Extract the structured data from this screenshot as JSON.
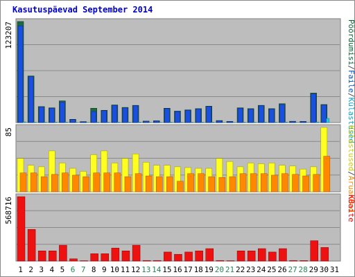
{
  "title": "Kasutuspäevad September 2014",
  "chart_data": [
    {
      "type": "bar",
      "panel": "top",
      "ymax_label": "123207",
      "ylim": [
        0,
        123207
      ],
      "y_axis_title_parts": [
        {
          "text": "Pöördumisi",
          "color": "#006633"
        },
        {
          "text": "/",
          "color": "#444444"
        },
        {
          "text": "Faile",
          "color": "#0055cc"
        },
        {
          "text": "/",
          "color": "#444444"
        },
        {
          "text": "Külastused",
          "color": "#00aacc"
        }
      ],
      "colors": {
        "hits": "#1d6b3a",
        "files": "#1a4fe0",
        "visits": "#22ccdd"
      },
      "categories": [
        "1",
        "2",
        "3",
        "4",
        "5",
        "6",
        "7",
        "8",
        "9",
        "10",
        "11",
        "12",
        "13",
        "14",
        "15",
        "16",
        "17",
        "18",
        "19",
        "20",
        "21",
        "22",
        "23",
        "24",
        "25",
        "26",
        "27",
        "28",
        "29",
        "30",
        "31"
      ],
      "series": [
        {
          "name": "Pöördumisi",
          "values": [
            123207,
            56800,
            19500,
            18000,
            26500,
            4000,
            1200,
            17500,
            15000,
            21500,
            18500,
            21000,
            1800,
            2200,
            17500,
            14000,
            15500,
            17000,
            20000,
            2500,
            1500,
            18000,
            17000,
            21000,
            17000,
            23000,
            1600,
            1500,
            36000,
            22000,
            0
          ]
        },
        {
          "name": "Faile",
          "values": [
            118000,
            56000,
            19000,
            17500,
            25000,
            3600,
            1000,
            13500,
            14500,
            21000,
            18000,
            20500,
            1600,
            2000,
            17000,
            13500,
            15000,
            16500,
            19500,
            2200,
            1300,
            17500,
            16500,
            20500,
            16500,
            22000,
            1400,
            1300,
            35000,
            21500,
            0
          ]
        },
        {
          "name": "Külastused",
          "values": [
            900,
            500,
            400,
            400,
            500,
            100,
            50,
            400,
            400,
            500,
            400,
            500,
            50,
            60,
            400,
            300,
            350,
            400,
            450,
            60,
            40,
            400,
            380,
            450,
            380,
            500,
            40,
            40,
            700,
            5000,
            0
          ]
        }
      ]
    },
    {
      "type": "bar",
      "panel": "middle",
      "ymax_label": "85",
      "ylim": [
        0,
        85
      ],
      "y_axis_title_parts": [
        {
          "text": "Külastused",
          "color": "#cccc00"
        },
        {
          "text": "/",
          "color": "#444444"
        },
        {
          "text": "Aruanded",
          "color": "#ff8800"
        }
      ],
      "colors": {
        "visits": "#ffff22",
        "reports": "#ff8800"
      },
      "categories": [
        "1",
        "2",
        "3",
        "4",
        "5",
        "6",
        "7",
        "8",
        "9",
        "10",
        "11",
        "12",
        "13",
        "14",
        "15",
        "16",
        "17",
        "18",
        "19",
        "20",
        "21",
        "22",
        "23",
        "24",
        "25",
        "26",
        "27",
        "28",
        "29",
        "30",
        "31"
      ],
      "series": [
        {
          "name": "Külastused",
          "values": [
            44,
            35,
            33,
            54,
            38,
            31,
            27,
            49,
            54,
            38,
            44,
            50,
            39,
            35,
            35,
            33,
            32,
            31,
            31,
            44,
            40,
            33,
            38,
            37,
            38,
            35,
            34,
            30,
            33,
            85,
            0
          ]
        },
        {
          "name": "Aruanded",
          "values": [
            25,
            25,
            20,
            23,
            25,
            22,
            20,
            25,
            25,
            25,
            20,
            24,
            21,
            20,
            20,
            14,
            24,
            24,
            20,
            19,
            20,
            24,
            24,
            24,
            22,
            24,
            23,
            21,
            23,
            47,
            0
          ]
        }
      ]
    },
    {
      "type": "bar",
      "panel": "bottom",
      "ymax_label": "568716",
      "ylim": [
        0,
        568716
      ],
      "y_axis_title_parts": [
        {
          "text": "KBaite",
          "color": "#ff0000"
        }
      ],
      "colors": {
        "kbytes": "#ee1111"
      },
      "categories": [
        "1",
        "2",
        "3",
        "4",
        "5",
        "6",
        "7",
        "8",
        "9",
        "10",
        "11",
        "12",
        "13",
        "14",
        "15",
        "16",
        "17",
        "18",
        "19",
        "20",
        "21",
        "22",
        "23",
        "24",
        "25",
        "26",
        "27",
        "28",
        "29",
        "30",
        "31"
      ],
      "series": [
        {
          "name": "KBaite",
          "values": [
            568716,
            280000,
            90000,
            90000,
            140000,
            20000,
            3000,
            65000,
            65000,
            115000,
            90000,
            140000,
            5000,
            5000,
            80000,
            60000,
            80000,
            90000,
            110000,
            5000,
            3000,
            90000,
            90000,
            110000,
            80000,
            110000,
            5000,
            4000,
            180000,
            120000,
            0
          ]
        }
      ]
    }
  ],
  "x_labels": [
    {
      "text": "1",
      "color": "#000000"
    },
    {
      "text": "2",
      "color": "#000000"
    },
    {
      "text": "3",
      "color": "#000000"
    },
    {
      "text": "4",
      "color": "#000000"
    },
    {
      "text": "5",
      "color": "#000000"
    },
    {
      "text": "6",
      "color": "#228855"
    },
    {
      "text": "7",
      "color": "#228855"
    },
    {
      "text": "8",
      "color": "#000000"
    },
    {
      "text": "9",
      "color": "#000000"
    },
    {
      "text": "10",
      "color": "#000000"
    },
    {
      "text": "11",
      "color": "#000000"
    },
    {
      "text": "12",
      "color": "#000000"
    },
    {
      "text": "13",
      "color": "#228855"
    },
    {
      "text": "14",
      "color": "#228855"
    },
    {
      "text": "15",
      "color": "#000000"
    },
    {
      "text": "16",
      "color": "#000000"
    },
    {
      "text": "17",
      "color": "#000000"
    },
    {
      "text": "18",
      "color": "#000000"
    },
    {
      "text": "19",
      "color": "#000000"
    },
    {
      "text": "20",
      "color": "#228855"
    },
    {
      "text": "21",
      "color": "#228855"
    },
    {
      "text": "22",
      "color": "#000000"
    },
    {
      "text": "23",
      "color": "#000000"
    },
    {
      "text": "24",
      "color": "#000000"
    },
    {
      "text": "25",
      "color": "#000000"
    },
    {
      "text": "26",
      "color": "#000000"
    },
    {
      "text": "27",
      "color": "#228855"
    },
    {
      "text": "28",
      "color": "#228855"
    },
    {
      "text": "29",
      "color": "#000000"
    },
    {
      "text": "30",
      "color": "#000000"
    },
    {
      "text": "31",
      "color": "#000000"
    }
  ]
}
